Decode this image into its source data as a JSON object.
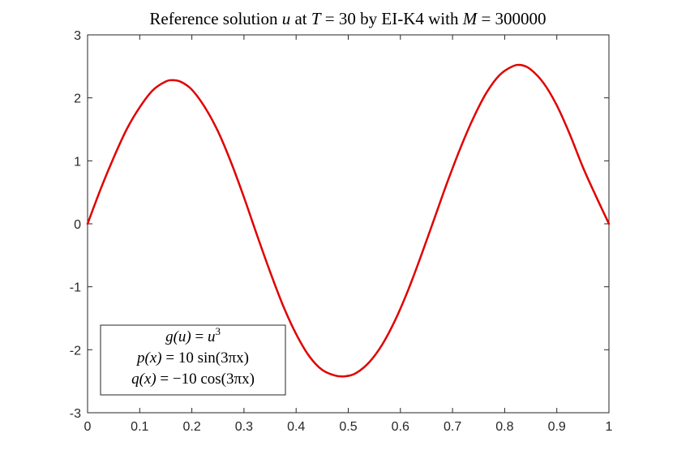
{
  "chart_data": {
    "type": "line",
    "title": {
      "prefix": "Reference solution ",
      "u": "u",
      "at": " at ",
      "T": "T",
      "eq_T": " = 30 by EI-K4 with ",
      "M": "M",
      "eq_M": " = 300000"
    },
    "xlabel": "",
    "ylabel": "",
    "xlim": [
      0,
      1
    ],
    "ylim": [
      -3,
      3
    ],
    "xticks": [
      0,
      0.1,
      0.2,
      0.3,
      0.4,
      0.5,
      0.6,
      0.7,
      0.8,
      0.9,
      1
    ],
    "xtick_labels": [
      "0",
      "0.1",
      "0.2",
      "0.3",
      "0.4",
      "0.5",
      "0.6",
      "0.7",
      "0.8",
      "0.9",
      "1"
    ],
    "yticks": [
      -3,
      -2,
      -1,
      0,
      1,
      2,
      3
    ],
    "ytick_labels": [
      "-3",
      "-2",
      "-1",
      "0",
      "1",
      "2",
      "3"
    ],
    "grid": false,
    "series": [
      {
        "color": "#e00000",
        "x": [
          0,
          0.025,
          0.05,
          0.075,
          0.1,
          0.125,
          0.15,
          0.165,
          0.18,
          0.2,
          0.225,
          0.25,
          0.275,
          0.3,
          0.325,
          0.35,
          0.375,
          0.4,
          0.425,
          0.45,
          0.475,
          0.495,
          0.515,
          0.54,
          0.565,
          0.59,
          0.615,
          0.64,
          0.665,
          0.69,
          0.715,
          0.74,
          0.765,
          0.79,
          0.815,
          0.832,
          0.85,
          0.875,
          0.9,
          0.925,
          0.95,
          0.975,
          1
        ],
        "y": [
          0,
          0.55,
          1.05,
          1.5,
          1.85,
          2.12,
          2.26,
          2.28,
          2.25,
          2.13,
          1.85,
          1.47,
          0.98,
          0.42,
          -0.18,
          -0.76,
          -1.3,
          -1.75,
          -2.1,
          -2.32,
          -2.41,
          -2.42,
          -2.37,
          -2.2,
          -1.92,
          -1.53,
          -1.05,
          -0.5,
          0.08,
          0.66,
          1.2,
          1.68,
          2.08,
          2.36,
          2.5,
          2.52,
          2.45,
          2.23,
          1.88,
          1.42,
          0.9,
          0.44,
          0
        ]
      }
    ],
    "legend": {
      "placement": "bottom-left",
      "lines": [
        {
          "lhs": "g(u)",
          "eq": " = ",
          "rhs": "u",
          "sup": "3"
        },
        {
          "lhs": "p(x)",
          "eq": " = ",
          "rhs": "10 sin(3πx)"
        },
        {
          "lhs": "q(x)",
          "eq": " = ",
          "rhs": "−10 cos(3πx)"
        }
      ]
    }
  }
}
